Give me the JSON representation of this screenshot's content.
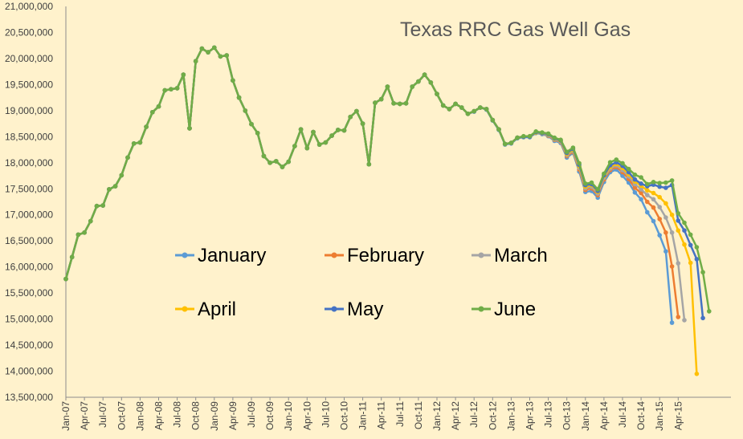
{
  "chart_data": {
    "type": "line",
    "title": "Texas RRC Gas Well Gas",
    "xlabel": "",
    "ylabel": "",
    "ylim": [
      13500000,
      21000000
    ],
    "y_ticks": [
      "13,500,000",
      "14,000,000",
      "14,500,000",
      "15,000,000",
      "15,500,000",
      "16,000,000",
      "16,500,000",
      "17,000,000",
      "17,500,000",
      "18,000,000",
      "18,500,000",
      "19,000,000",
      "19,500,000",
      "20,000,000",
      "20,500,000",
      "21,000,000"
    ],
    "x_ticks": [
      "Jan-07",
      "Apr-07",
      "Jul-07",
      "Oct-07",
      "Jan-08",
      "Apr-08",
      "Jul-08",
      "Oct-08",
      "Jan-09",
      "Apr-09",
      "Jul-09",
      "Oct-09",
      "Jan-10",
      "Apr-10",
      "Jul-10",
      "Oct-10",
      "Jan-11",
      "Apr-11",
      "Jul-11",
      "Oct-11",
      "Jan-12",
      "Apr-12",
      "Jul-12",
      "Oct-12",
      "Jan-13",
      "Apr-13",
      "Jul-13",
      "Oct-13",
      "Jan-14",
      "Apr-14",
      "Jul-14",
      "Oct-14",
      "Jan-15",
      "Apr-15"
    ],
    "grid": false,
    "legend_position": "center",
    "series": [
      {
        "name": "January",
        "color": "#5b9bd5",
        "values": [
          15770000,
          16190000,
          16620000,
          16660000,
          16880000,
          17170000,
          17180000,
          17490000,
          17550000,
          17760000,
          18100000,
          18370000,
          18390000,
          18690000,
          18970000,
          19080000,
          19390000,
          19410000,
          19430000,
          19690000,
          18660000,
          19950000,
          20190000,
          20120000,
          20210000,
          20040000,
          20060000,
          19580000,
          19250000,
          19000000,
          18740000,
          18570000,
          18130000,
          18000000,
          18030000,
          17920000,
          18020000,
          18320000,
          18640000,
          18280000,
          18590000,
          18350000,
          18390000,
          18520000,
          18630000,
          18620000,
          18880000,
          18990000,
          18750000,
          17970000,
          19150000,
          19220000,
          19460000,
          19140000,
          19130000,
          19140000,
          19460000,
          19560000,
          19690000,
          19540000,
          19320000,
          19100000,
          19030000,
          19130000,
          19060000,
          18940000,
          18980000,
          19060000,
          19020000,
          18810000,
          18630000,
          18350000,
          18370000,
          18470000,
          18490000,
          18490000,
          18570000,
          18550000,
          18510000,
          18420000,
          18380000,
          18100000,
          18190000,
          17830000,
          17440000,
          17460000,
          17330000,
          17630000,
          17820000,
          17870000,
          17750000,
          17620000,
          17430000,
          17300000,
          17050000,
          16880000,
          16610000,
          16300000,
          14930000
        ]
      },
      {
        "name": "February",
        "color": "#ed7d31",
        "values": [
          15770000,
          16190000,
          16620000,
          16660000,
          16880000,
          17170000,
          17180000,
          17490000,
          17550000,
          17760000,
          18100000,
          18370000,
          18390000,
          18690000,
          18970000,
          19080000,
          19390000,
          19410000,
          19430000,
          19690000,
          18660000,
          19950000,
          20190000,
          20120000,
          20210000,
          20040000,
          20060000,
          19580000,
          19250000,
          19000000,
          18740000,
          18570000,
          18130000,
          18000000,
          18030000,
          17920000,
          18020000,
          18320000,
          18640000,
          18280000,
          18590000,
          18350000,
          18390000,
          18520000,
          18630000,
          18620000,
          18880000,
          18990000,
          18750000,
          17970000,
          19150000,
          19220000,
          19460000,
          19140000,
          19130000,
          19140000,
          19460000,
          19560000,
          19690000,
          19540000,
          19320000,
          19100000,
          19030000,
          19130000,
          19060000,
          18940000,
          18990000,
          19060000,
          19030000,
          18820000,
          18640000,
          18360000,
          18380000,
          18480000,
          18500000,
          18500000,
          18580000,
          18560000,
          18520000,
          18440000,
          18400000,
          18130000,
          18210000,
          17870000,
          17480000,
          17510000,
          17380000,
          17680000,
          17860000,
          17920000,
          17820000,
          17690000,
          17520000,
          17420000,
          17250000,
          17140000,
          16920000,
          16660000,
          16010000,
          15040000
        ]
      },
      {
        "name": "March",
        "color": "#a5a5a5",
        "values": [
          15770000,
          16190000,
          16620000,
          16660000,
          16880000,
          17170000,
          17180000,
          17490000,
          17550000,
          17760000,
          18100000,
          18370000,
          18390000,
          18690000,
          18970000,
          19080000,
          19390000,
          19410000,
          19430000,
          19690000,
          18660000,
          19950000,
          20190000,
          20120000,
          20210000,
          20040000,
          20060000,
          19580000,
          19250000,
          19000000,
          18740000,
          18570000,
          18130000,
          18000000,
          18030000,
          17920000,
          18020000,
          18320000,
          18640000,
          18280000,
          18590000,
          18350000,
          18390000,
          18520000,
          18630000,
          18620000,
          18880000,
          18990000,
          18750000,
          17970000,
          19150000,
          19220000,
          19460000,
          19140000,
          19130000,
          19140000,
          19460000,
          19560000,
          19690000,
          19540000,
          19320000,
          19100000,
          19030000,
          19130000,
          19060000,
          18940000,
          18990000,
          19060000,
          19030000,
          18820000,
          18640000,
          18360000,
          18380000,
          18480000,
          18500000,
          18500000,
          18580000,
          18560000,
          18530000,
          18450000,
          18410000,
          18150000,
          18230000,
          17900000,
          17510000,
          17540000,
          17410000,
          17710000,
          17890000,
          17950000,
          17860000,
          17740000,
          17590000,
          17490000,
          17380000,
          17300000,
          17150000,
          16950000,
          16660000,
          16070000,
          14980000
        ]
      },
      {
        "name": "April",
        "color": "#ffc000",
        "values": [
          15770000,
          16190000,
          16620000,
          16660000,
          16880000,
          17170000,
          17180000,
          17490000,
          17550000,
          17760000,
          18100000,
          18370000,
          18390000,
          18690000,
          18970000,
          19080000,
          19390000,
          19410000,
          19430000,
          19690000,
          18660000,
          19950000,
          20190000,
          20120000,
          20210000,
          20040000,
          20060000,
          19580000,
          19250000,
          19000000,
          18740000,
          18570000,
          18130000,
          18000000,
          18030000,
          17920000,
          18020000,
          18320000,
          18640000,
          18280000,
          18590000,
          18350000,
          18390000,
          18520000,
          18630000,
          18620000,
          18880000,
          18990000,
          18750000,
          17970000,
          19150000,
          19220000,
          19460000,
          19140000,
          19130000,
          19140000,
          19460000,
          19560000,
          19690000,
          19540000,
          19320000,
          19100000,
          19030000,
          19130000,
          19060000,
          18940000,
          18990000,
          19060000,
          19030000,
          18820000,
          18640000,
          18360000,
          18380000,
          18480000,
          18500000,
          18500000,
          18580000,
          18570000,
          18540000,
          18460000,
          18420000,
          18170000,
          18250000,
          17930000,
          17540000,
          17570000,
          17440000,
          17740000,
          17920000,
          17980000,
          17900000,
          17780000,
          17640000,
          17560000,
          17470000,
          17420000,
          17340000,
          17220000,
          17000000,
          16700000,
          16430000,
          16080000,
          13950000
        ]
      },
      {
        "name": "May",
        "color": "#4472c4",
        "values": [
          15770000,
          16190000,
          16620000,
          16660000,
          16880000,
          17170000,
          17180000,
          17490000,
          17550000,
          17760000,
          18100000,
          18370000,
          18390000,
          18690000,
          18970000,
          19080000,
          19390000,
          19410000,
          19430000,
          19690000,
          18660000,
          19950000,
          20190000,
          20120000,
          20210000,
          20040000,
          20060000,
          19580000,
          19250000,
          19000000,
          18740000,
          18570000,
          18130000,
          18000000,
          18030000,
          17920000,
          18020000,
          18320000,
          18640000,
          18280000,
          18590000,
          18350000,
          18390000,
          18520000,
          18630000,
          18620000,
          18880000,
          18990000,
          18750000,
          17970000,
          19150000,
          19220000,
          19460000,
          19140000,
          19130000,
          19140000,
          19460000,
          19560000,
          19690000,
          19540000,
          19320000,
          19100000,
          19030000,
          19130000,
          19060000,
          18940000,
          18990000,
          19060000,
          19030000,
          18820000,
          18640000,
          18360000,
          18380000,
          18480000,
          18500000,
          18500000,
          18590000,
          18570000,
          18550000,
          18470000,
          18430000,
          18190000,
          18270000,
          17960000,
          17570000,
          17590000,
          17460000,
          17760000,
          17950000,
          18010000,
          17940000,
          17820000,
          17680000,
          17600000,
          17550000,
          17580000,
          17540000,
          17520000,
          17570000,
          16890000,
          16700000,
          16420000,
          16150000,
          15020000
        ]
      },
      {
        "name": "June",
        "color": "#70ad47",
        "values": [
          15770000,
          16190000,
          16620000,
          16660000,
          16880000,
          17170000,
          17180000,
          17490000,
          17550000,
          17760000,
          18100000,
          18370000,
          18390000,
          18690000,
          18970000,
          19080000,
          19390000,
          19410000,
          19430000,
          19690000,
          18660000,
          19950000,
          20190000,
          20120000,
          20210000,
          20040000,
          20060000,
          19580000,
          19250000,
          19000000,
          18740000,
          18570000,
          18130000,
          18000000,
          18030000,
          17920000,
          18020000,
          18320000,
          18640000,
          18280000,
          18590000,
          18350000,
          18390000,
          18520000,
          18630000,
          18620000,
          18880000,
          18990000,
          18750000,
          17970000,
          19150000,
          19220000,
          19460000,
          19140000,
          19130000,
          19140000,
          19460000,
          19560000,
          19690000,
          19540000,
          19320000,
          19100000,
          19030000,
          19130000,
          19060000,
          18940000,
          18990000,
          19060000,
          19030000,
          18820000,
          18640000,
          18360000,
          18380000,
          18480000,
          18510000,
          18510000,
          18600000,
          18580000,
          18560000,
          18480000,
          18440000,
          18210000,
          18290000,
          17990000,
          17600000,
          17620000,
          17490000,
          17790000,
          18010000,
          18060000,
          17990000,
          17880000,
          17770000,
          17720000,
          17590000,
          17630000,
          17610000,
          17620000,
          17660000,
          17030000,
          16850000,
          16620000,
          16380000,
          15900000,
          15150000
        ]
      }
    ]
  }
}
